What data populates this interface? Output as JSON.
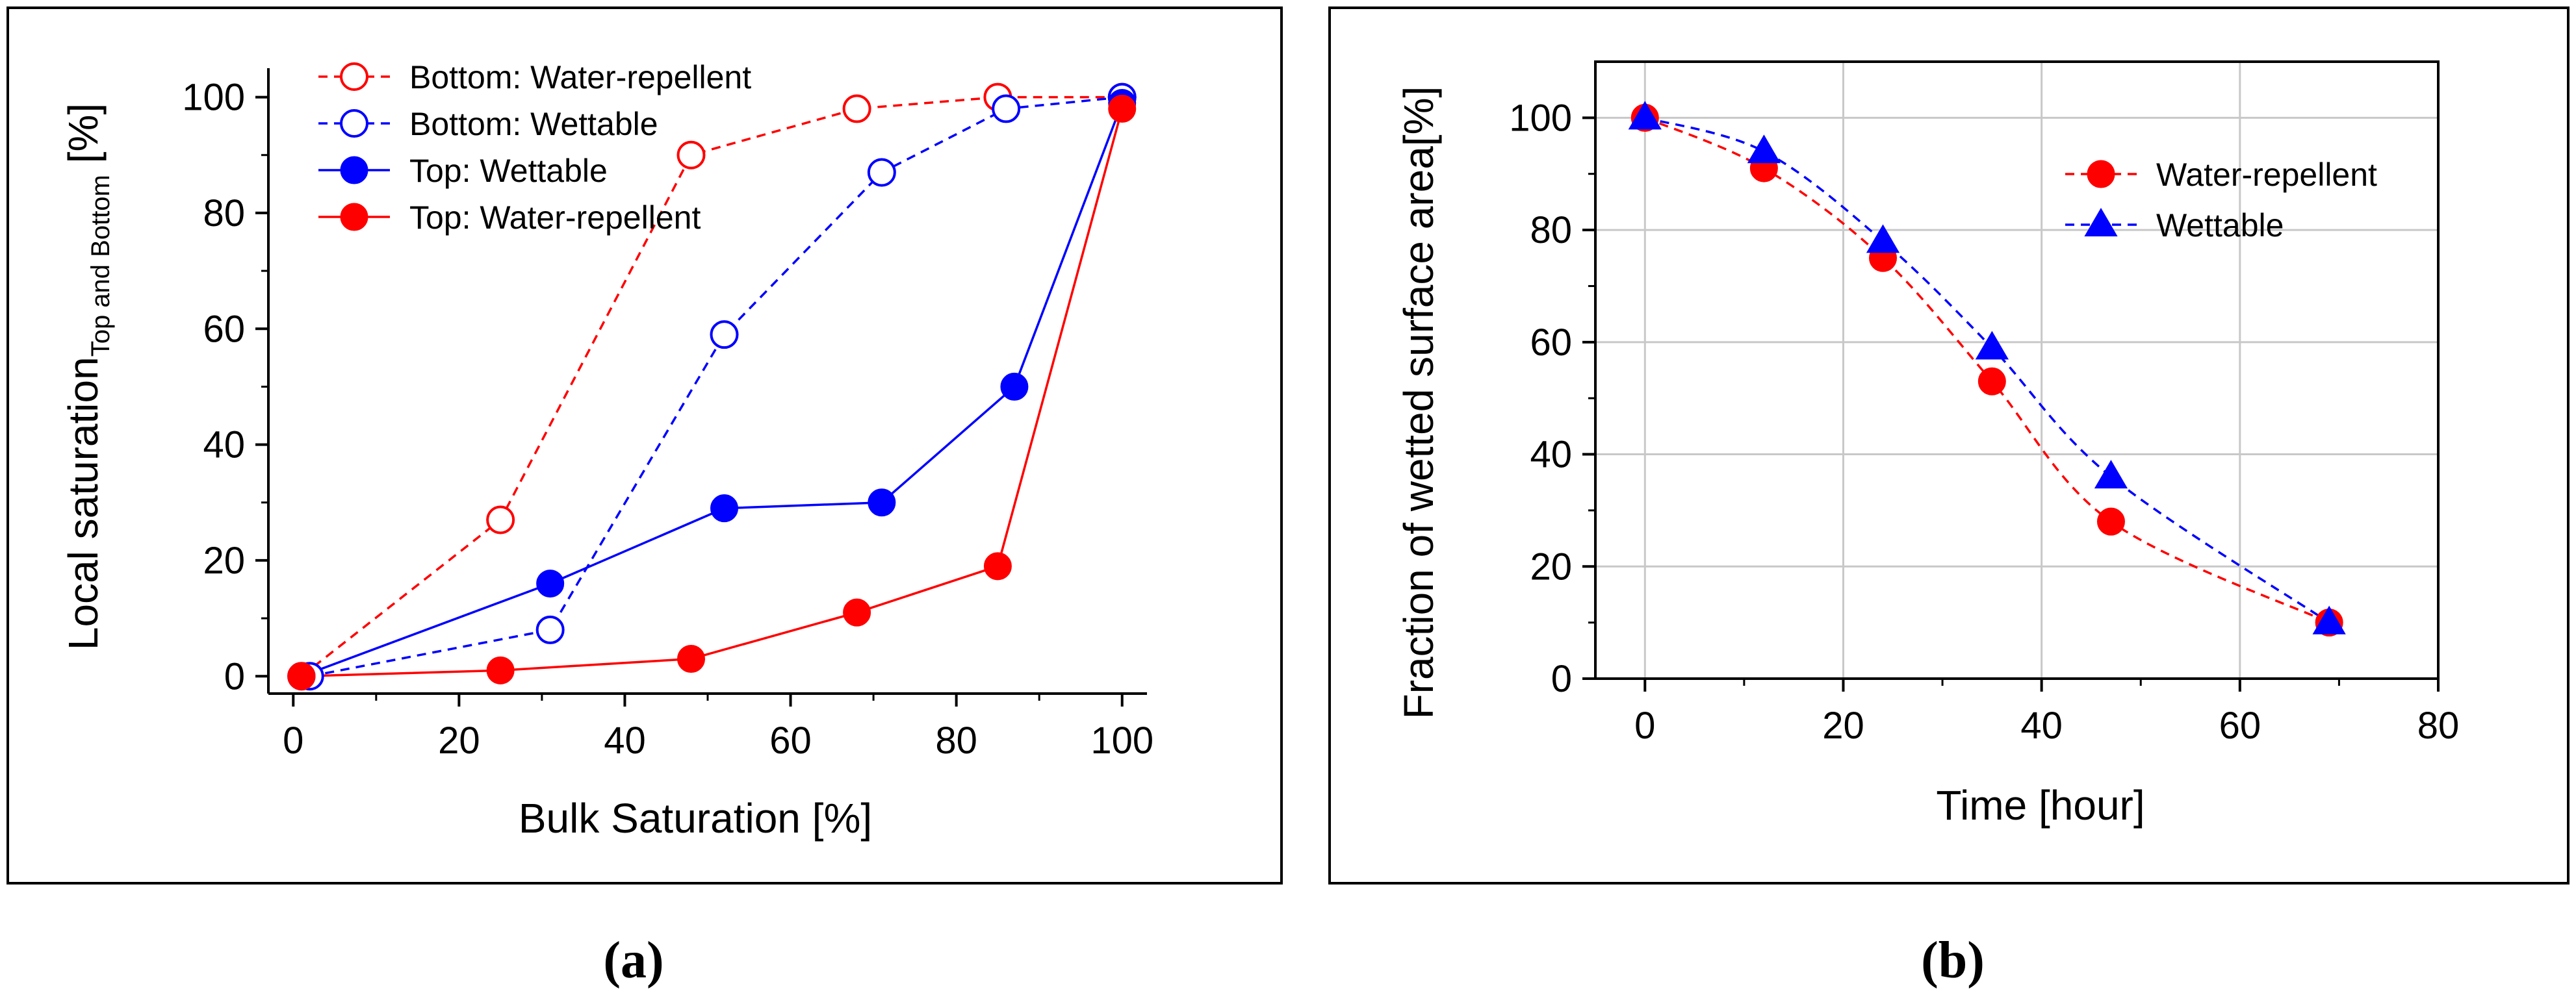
{
  "chart_data": [
    {
      "type": "line",
      "panel_label": "(a)",
      "xlabel": "Bulk Saturation [%]",
      "ylabel_main": "Local saturation",
      "ylabel_sub": "Top and Bottom",
      "ylabel_unit": " [%]",
      "xlim": [
        -3,
        103
      ],
      "ylim": [
        -3,
        105
      ],
      "xticks": [
        0,
        20,
        40,
        60,
        80,
        100
      ],
      "yticks": [
        0,
        20,
        40,
        60,
        80,
        100
      ],
      "grid": false,
      "legend_position": "top-left",
      "series": [
        {
          "name": "Bottom: Water-repellent",
          "color": "#ff0000",
          "line": "dashed",
          "marker": "circle-open",
          "x": [
            1,
            25,
            48,
            68,
            85,
            100
          ],
          "y": [
            0,
            27,
            90,
            98,
            100,
            100
          ]
        },
        {
          "name": "Bottom: Wettable",
          "color": "#0000ff",
          "line": "dashed",
          "marker": "circle-open",
          "x": [
            2,
            31,
            52,
            71,
            86,
            100
          ],
          "y": [
            0,
            8,
            59,
            87,
            98,
            100
          ]
        },
        {
          "name": "Top: Wettable",
          "color": "#0000ff",
          "line": "solid",
          "marker": "circle-filled",
          "x": [
            1,
            31,
            52,
            71,
            87,
            100
          ],
          "y": [
            0,
            16,
            29,
            30,
            50,
            99
          ]
        },
        {
          "name": "Top: Water-repellent",
          "color": "#ff0000",
          "line": "solid",
          "marker": "circle-filled",
          "x": [
            1,
            25,
            48,
            68,
            85,
            100
          ],
          "y": [
            0,
            1,
            3,
            11,
            19,
            98
          ]
        }
      ]
    },
    {
      "type": "line",
      "panel_label": "(b)",
      "xlabel": "Time [hour]",
      "ylabel": "Fraction of wetted surface area[%]",
      "xlim": [
        -5,
        80
      ],
      "ylim": [
        0,
        110
      ],
      "xticks": [
        0,
        20,
        40,
        60,
        80
      ],
      "yticks": [
        0,
        20,
        40,
        60,
        80,
        100
      ],
      "grid": true,
      "legend_position": "top-right",
      "series": [
        {
          "name": "Water-repellent",
          "color": "#ff0000",
          "line": "dashed",
          "marker": "circle-filled",
          "x": [
            0,
            12,
            24,
            35,
            47,
            69
          ],
          "y": [
            100,
            91,
            75,
            53,
            28,
            10
          ]
        },
        {
          "name": "Wettable",
          "color": "#0000ff",
          "line": "dashed",
          "marker": "triangle-filled",
          "x": [
            0,
            12,
            24,
            35,
            47,
            69
          ],
          "y": [
            100,
            94,
            78,
            59,
            36,
            10
          ]
        }
      ]
    }
  ]
}
